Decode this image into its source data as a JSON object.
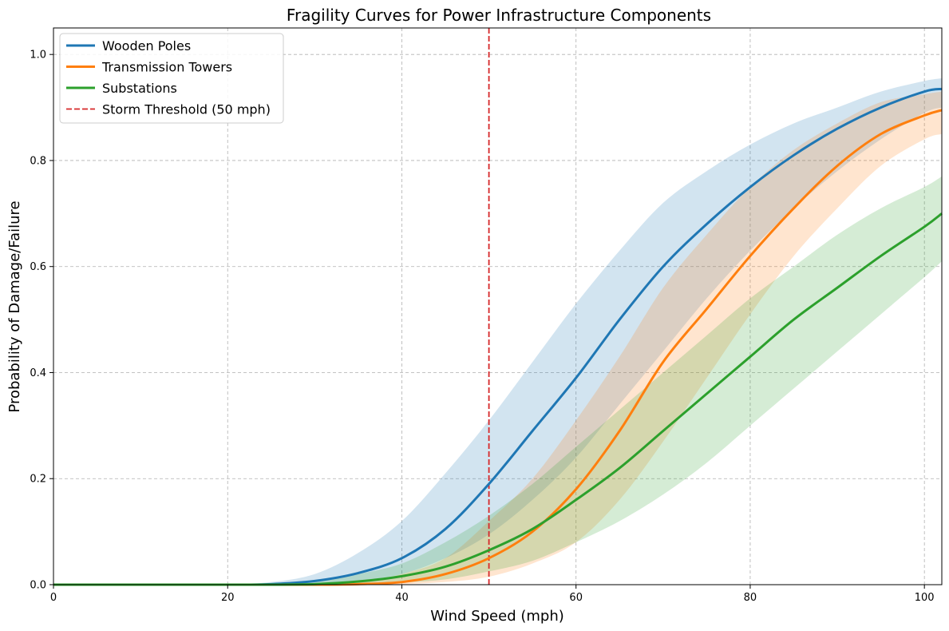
{
  "chart_data": {
    "type": "line",
    "title": "Fragility Curves for Power Infrastructure Components",
    "xlabel": "Wind Speed (mph)",
    "ylabel": "Probability of Damage/Failure",
    "xlim": [
      0,
      102
    ],
    "ylim": [
      0,
      1.05
    ],
    "xticks": [
      0,
      20,
      40,
      60,
      80,
      100
    ],
    "yticks": [
      0.0,
      0.2,
      0.4,
      0.6,
      0.8,
      1.0
    ],
    "xtick_labels": [
      "0",
      "20",
      "40",
      "60",
      "80",
      "100"
    ],
    "ytick_labels": [
      "0.0",
      "0.2",
      "0.4",
      "0.6",
      "0.8",
      "1.0"
    ],
    "grid": true,
    "legend_position": "top-left",
    "x": [
      0,
      10,
      20,
      25,
      30,
      35,
      40,
      45,
      50,
      55,
      60,
      65,
      70,
      75,
      80,
      85,
      90,
      95,
      100,
      102
    ],
    "series": [
      {
        "name": "Wooden Poles",
        "color": "#1f77b4",
        "values": [
          0.0,
          0.0,
          0.0,
          0.001,
          0.007,
          0.022,
          0.05,
          0.105,
          0.19,
          0.29,
          0.39,
          0.5,
          0.6,
          0.68,
          0.75,
          0.81,
          0.86,
          0.9,
          0.93,
          0.935
        ],
        "lower": [
          0.0,
          0.0,
          0.0,
          0.0,
          0.002,
          0.008,
          0.02,
          0.05,
          0.095,
          0.16,
          0.24,
          0.34,
          0.44,
          0.54,
          0.63,
          0.71,
          0.78,
          0.84,
          0.89,
          0.9
        ],
        "upper": [
          0.0,
          0.0,
          0.001,
          0.005,
          0.02,
          0.06,
          0.12,
          0.21,
          0.31,
          0.42,
          0.53,
          0.63,
          0.72,
          0.78,
          0.83,
          0.87,
          0.9,
          0.93,
          0.95,
          0.955
        ]
      },
      {
        "name": "Transmission Towers",
        "color": "#ff7f0e",
        "values": [
          0.0,
          0.0,
          0.0,
          0.0,
          0.0,
          0.001,
          0.005,
          0.02,
          0.05,
          0.1,
          0.18,
          0.29,
          0.42,
          0.52,
          0.62,
          0.71,
          0.79,
          0.85,
          0.885,
          0.895
        ],
        "lower": [
          0.0,
          0.0,
          0.0,
          0.0,
          0.0,
          0.0,
          0.001,
          0.005,
          0.015,
          0.04,
          0.08,
          0.16,
          0.27,
          0.39,
          0.51,
          0.62,
          0.71,
          0.79,
          0.84,
          0.85
        ],
        "upper": [
          0.0,
          0.0,
          0.0,
          0.0,
          0.001,
          0.005,
          0.02,
          0.05,
          0.12,
          0.2,
          0.31,
          0.43,
          0.56,
          0.66,
          0.75,
          0.82,
          0.87,
          0.91,
          0.925,
          0.93
        ]
      },
      {
        "name": "Substations",
        "color": "#2ca02c",
        "values": [
          0.0,
          0.0,
          0.0,
          0.0,
          0.001,
          0.006,
          0.016,
          0.034,
          0.065,
          0.105,
          0.16,
          0.22,
          0.29,
          0.36,
          0.43,
          0.5,
          0.56,
          0.62,
          0.675,
          0.7
        ],
        "lower": [
          0.0,
          0.0,
          0.0,
          0.0,
          0.0,
          0.001,
          0.004,
          0.01,
          0.025,
          0.045,
          0.08,
          0.12,
          0.17,
          0.23,
          0.3,
          0.37,
          0.44,
          0.51,
          0.58,
          0.61
        ],
        "upper": [
          0.0,
          0.0,
          0.0,
          0.001,
          0.005,
          0.02,
          0.04,
          0.08,
          0.13,
          0.19,
          0.26,
          0.33,
          0.4,
          0.47,
          0.54,
          0.6,
          0.66,
          0.71,
          0.75,
          0.77
        ]
      }
    ],
    "threshold": {
      "name": "Storm Threshold (50 mph)",
      "x": 50,
      "color": "#d62728"
    }
  }
}
